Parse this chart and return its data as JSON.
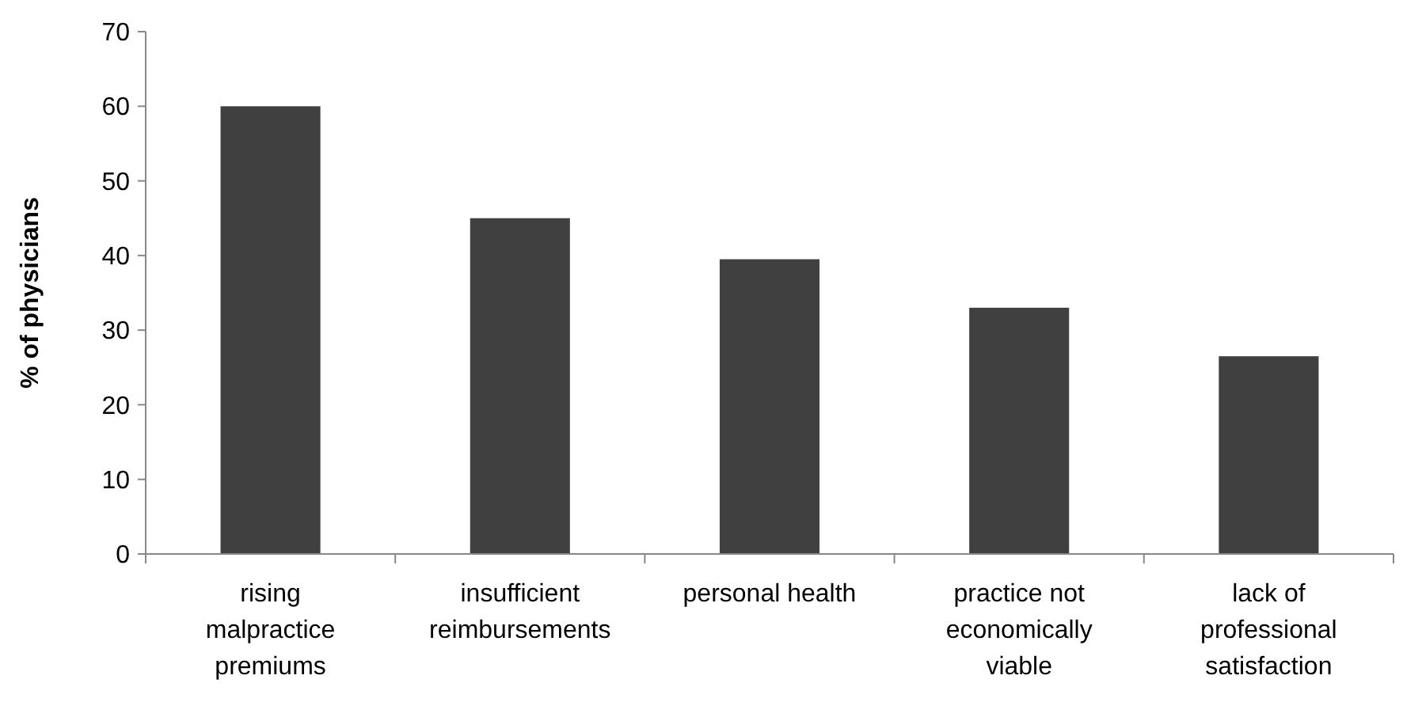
{
  "chart_data": {
    "type": "bar",
    "ylabel": "% of physicians",
    "categories": [
      "rising malpractice premiums",
      "insufficient reimbursements",
      "personal health",
      "practice not economically viable",
      "lack of professional satisfaction"
    ],
    "values": [
      60,
      45,
      39.5,
      33,
      26.5
    ],
    "color": "#404040",
    "ylim": [
      0,
      70
    ],
    "yticks": [
      0,
      10,
      20,
      30,
      40,
      50,
      60,
      70
    ],
    "grid": false
  }
}
